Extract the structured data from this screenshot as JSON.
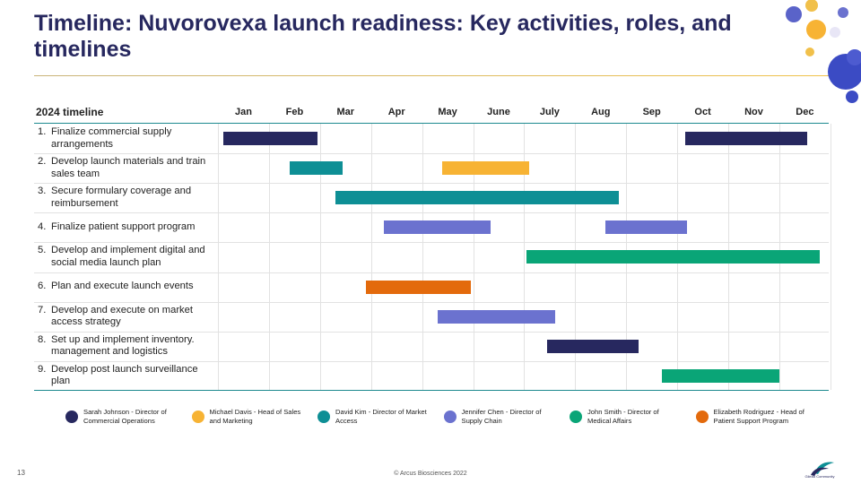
{
  "title": "Timeline: Nuvorovexa launch readiness: Key activities, roles, and timelines",
  "timeline_label": "2024 timeline",
  "months": [
    "Jan",
    "Feb",
    "Mar",
    "Apr",
    "May",
    "June",
    "July",
    "Aug",
    "Sep",
    "Oct",
    "Nov",
    "Dec"
  ],
  "tasks": [
    {
      "num": "1.",
      "label": "Finalize commercial supply arrangements"
    },
    {
      "num": "2.",
      "label": "Develop launch materials and train sales team"
    },
    {
      "num": "3.",
      "label": "Secure formulary coverage and reimbursement"
    },
    {
      "num": "4.",
      "label": "Finalize patient support program"
    },
    {
      "num": "5.",
      "label": "Develop and implement digital and social media launch plan"
    },
    {
      "num": "6.",
      "label": "Plan and execute launch events"
    },
    {
      "num": "7.",
      "label": "Develop and execute on market access strategy"
    },
    {
      "num": "8.",
      "label": "Set up and implement inventory. management and logistics"
    },
    {
      "num": "9.",
      "label": "Develop post launch surveillance plan"
    }
  ],
  "chart_data": {
    "type": "gantt",
    "x_unit": "month index (0 = start of Jan 2024, 12 = end of Dec 2024)",
    "bars": [
      {
        "task": 1,
        "owner": 0,
        "start": 0.1,
        "end": 1.95
      },
      {
        "task": 1,
        "owner": 0,
        "start": 9.15,
        "end": 11.55
      },
      {
        "task": 2,
        "owner": 2,
        "start": 1.4,
        "end": 2.45
      },
      {
        "task": 2,
        "owner": 1,
        "start": 4.4,
        "end": 6.1
      },
      {
        "task": 3,
        "owner": 2,
        "start": 2.3,
        "end": 7.85
      },
      {
        "task": 4,
        "owner": 3,
        "start": 3.25,
        "end": 5.35
      },
      {
        "task": 4,
        "owner": 3,
        "start": 7.6,
        "end": 9.2
      },
      {
        "task": 5,
        "owner": 4,
        "start": 6.05,
        "end": 11.8
      },
      {
        "task": 6,
        "owner": 5,
        "start": 2.9,
        "end": 4.95
      },
      {
        "task": 7,
        "owner": 3,
        "start": 4.3,
        "end": 6.6
      },
      {
        "task": 8,
        "owner": 0,
        "start": 6.45,
        "end": 8.25
      },
      {
        "task": 9,
        "owner": 4,
        "start": 8.7,
        "end": 11
      }
    ]
  },
  "legend": [
    {
      "label": "Sarah Johnson - Director of Commercial Operations",
      "color": "#27285f"
    },
    {
      "label": "Michael Davis - Head of Sales and Marketing",
      "color": "#f7b334"
    },
    {
      "label": "David Kim - Director of Market Access",
      "color": "#0e8f95"
    },
    {
      "label": "Jennifer Chen - Director of Supply Chain",
      "color": "#6b72cf"
    },
    {
      "label": "John Smith - Director of Medical Affairs",
      "color": "#0aa577"
    },
    {
      "label": "Elizabeth Rodriguez - Head of Patient Support Program",
      "color": "#e36a0c"
    }
  ],
  "page_number": "13",
  "footer": "© Arcus Biosciences 2022",
  "logo_text": "Gilead Community"
}
